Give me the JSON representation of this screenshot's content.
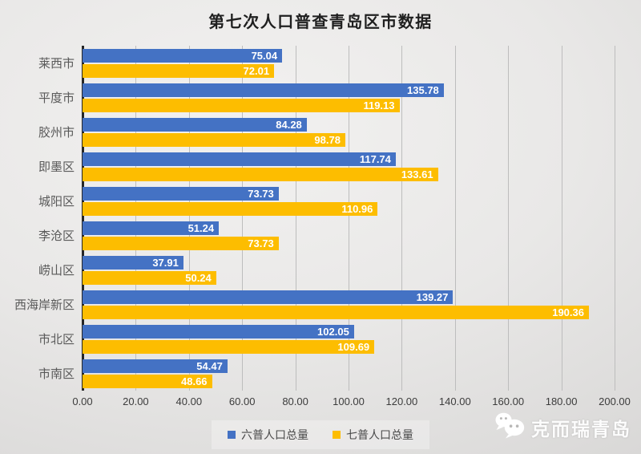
{
  "title": "第七次人口普查青岛区市数据",
  "chart_data": {
    "type": "bar",
    "orientation": "horizontal",
    "title": "第七次人口普查青岛区市数据",
    "categories": [
      "莱西市",
      "平度市",
      "胶州市",
      "即墨区",
      "城阳区",
      "李沧区",
      "崂山区",
      "西海岸新区",
      "市北区",
      "市南区"
    ],
    "series": [
      {
        "name": "六普人口总量",
        "color": "#4472c4",
        "values": [
          75.04,
          135.78,
          84.28,
          117.74,
          73.73,
          51.24,
          37.91,
          139.27,
          102.05,
          54.47
        ]
      },
      {
        "name": "七普人口总量",
        "color": "#fdbd00",
        "values": [
          72.01,
          119.13,
          98.78,
          133.61,
          110.96,
          73.73,
          50.24,
          190.36,
          109.69,
          48.66
        ]
      }
    ],
    "xlim": [
      0,
      200
    ],
    "x_ticks": [
      "0.00",
      "20.00",
      "40.00",
      "60.00",
      "80.00",
      "100.00",
      "120.00",
      "140.00",
      "160.00",
      "180.00",
      "200.00"
    ],
    "grid": true,
    "legend_position": "bottom",
    "value_labels": "inside-end, white bold, two decimals"
  },
  "colors": {
    "series_6th": "#4472c4",
    "series_7th": "#fdbd00",
    "axis_line": "#262626",
    "gridline": "#bdbdbd",
    "category_text": "#595959",
    "tick_text": "#3c3c3c",
    "value_text": "#ffffff",
    "title_text": "#1f1f1f"
  },
  "watermark": {
    "icon": "wechat-icon",
    "text": "克而瑞青岛"
  }
}
